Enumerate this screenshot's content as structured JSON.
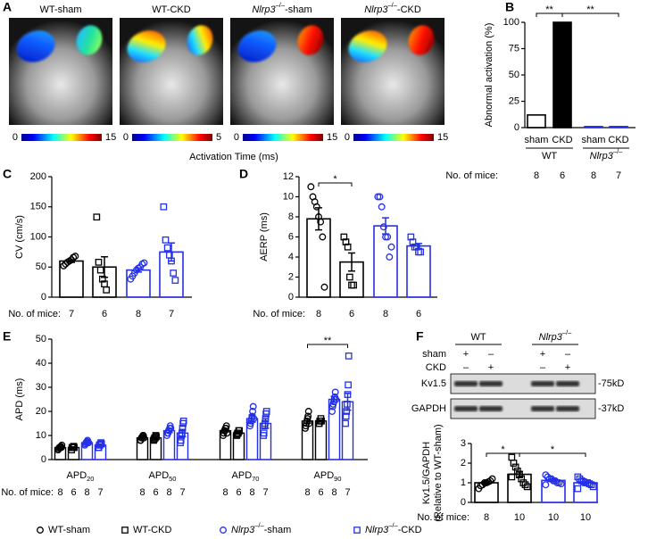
{
  "panel_labels": {
    "a": "A",
    "b": "B",
    "c": "C",
    "d": "D",
    "e": "E",
    "f": "F"
  },
  "mice_label": "No. of mice:",
  "panel_a": {
    "maps": [
      {
        "title": "WT-sham",
        "colorbar": [
          0,
          15
        ]
      },
      {
        "title": "WT-CKD",
        "colorbar": [
          0,
          5
        ]
      },
      {
        "title": {
          "gene": "Nlrp3",
          "sup": "–/–",
          "text": "-sham"
        },
        "colorbar": [
          0,
          15
        ]
      },
      {
        "title": {
          "gene": "Nlrp3",
          "sup": "–/–",
          "text": "-CKD"
        },
        "colorbar": [
          0,
          15
        ]
      }
    ],
    "axis_label": "Activation Time (ms)"
  },
  "legend": {
    "items": [
      {
        "label": "WT-sham",
        "color": "#000000",
        "marker": "circle"
      },
      {
        "label": "WT-CKD",
        "color": "#000000",
        "marker": "square"
      },
      {
        "label": {
          "gene": "Nlrp3",
          "sup": "–/–",
          "text": "-sham"
        },
        "color": "#2430e8",
        "marker": "circle"
      },
      {
        "label": {
          "gene": "Nlrp3",
          "sup": "–/–",
          "text": "-CKD"
        },
        "color": "#2430e8",
        "marker": "square"
      }
    ]
  },
  "chart_data": [
    {
      "type": "bar",
      "ylabel": "Abnormal activation (%)",
      "ylim": [
        0,
        100
      ],
      "yticks": [
        0,
        25,
        50,
        75,
        100
      ],
      "categories": [
        "sham",
        "CKD",
        "sham",
        "CKD"
      ],
      "values": [
        12,
        100,
        1,
        1
      ],
      "colors": [
        "#000000",
        "#000000",
        "#2430e8",
        "#2430e8"
      ],
      "filled": [
        false,
        true,
        false,
        false
      ],
      "groups": [
        {
          "label": "WT",
          "bars": [
            0,
            1
          ]
        },
        {
          "label": {
            "gene": "Nlrp3",
            "sup": "–/–"
          },
          "bars": [
            2,
            3
          ]
        }
      ],
      "significance": [
        {
          "label": "**",
          "between": [
            0,
            1
          ]
        },
        {
          "label": "**",
          "between": [
            1,
            3
          ]
        }
      ],
      "n": [
        8,
        6,
        8,
        7
      ]
    },
    {
      "type": "dot_bar",
      "ylabel": "CV (cm/s)",
      "ylim": [
        0,
        200
      ],
      "yticks": [
        0,
        50,
        100,
        150,
        200
      ],
      "groups": [
        {
          "points": [
            52,
            55,
            58,
            60,
            62,
            66,
            68
          ],
          "mean": 60,
          "sem": 2.3,
          "n": 7
        },
        {
          "points": [
            133,
            58,
            45,
            30,
            22,
            12
          ],
          "mean": 50,
          "sem": 17,
          "n": 6
        },
        {
          "points": [
            30,
            35,
            40,
            45,
            48,
            50,
            55,
            57
          ],
          "mean": 45,
          "sem": 3.3,
          "n": 8
        },
        {
          "points": [
            150,
            95,
            82,
            70,
            60,
            40,
            28
          ],
          "mean": 75,
          "sem": 15,
          "n": 7
        }
      ]
    },
    {
      "type": "dot_bar",
      "ylabel": "AERP (ms)",
      "ylim": [
        0,
        12
      ],
      "yticks": [
        0,
        2,
        4,
        6,
        8,
        10,
        12
      ],
      "groups": [
        {
          "points": [
            11,
            10,
            9.5,
            9,
            8,
            7.5,
            6,
            1
          ],
          "mean": 7.8,
          "sem": 1.1,
          "n": 8
        },
        {
          "points": [
            6,
            5.5,
            5,
            2,
            1.2,
            1.2
          ],
          "mean": 3.5,
          "sem": 0.9,
          "n": 6
        },
        {
          "points": [
            10,
            10,
            9,
            7,
            6,
            6,
            4,
            5
          ],
          "mean": 7.1,
          "sem": 0.8,
          "n": 8
        },
        {
          "points": [
            6,
            5.5,
            5,
            5,
            4.5,
            4.5
          ],
          "mean": 5.1,
          "sem": 0.25,
          "n": 6
        }
      ],
      "significance": [
        {
          "label": "*",
          "between": [
            0,
            1
          ]
        }
      ]
    },
    {
      "type": "grouped_dot_bar",
      "ylabel": "APD (ms)",
      "ylim": [
        0,
        50
      ],
      "yticks": [
        0,
        10,
        20,
        30,
        40,
        50
      ],
      "categories": [
        {
          "text": "APD",
          "sub": "20"
        },
        {
          "text": "APD",
          "sub": "50"
        },
        {
          "text": "APD",
          "sub": "70"
        },
        {
          "text": "APD",
          "sub": "90"
        }
      ],
      "series": [
        {
          "means": [
            5,
            9,
            12,
            16
          ],
          "sems": [
            0.3,
            0.5,
            0.5,
            0.9
          ],
          "n": 8,
          "points": [
            [
              4,
              4.5,
              5,
              5,
              5,
              5.5,
              5,
              6
            ],
            [
              8,
              8,
              9,
              9,
              9.5,
              10,
              10,
              9
            ],
            [
              10,
              11,
              12,
              12,
              13,
              13,
              14,
              11
            ],
            [
              13,
              14,
              15,
              16,
              17,
              18,
              20,
              15
            ]
          ]
        },
        {
          "means": [
            5,
            9,
            11,
            16
          ],
          "sems": [
            0.3,
            0.4,
            0.4,
            0.4
          ],
          "n": 6,
          "points": [
            [
              4,
              5,
              5,
              5,
              5.5,
              5
            ],
            [
              8,
              8.5,
              9,
              9,
              10,
              9.5
            ],
            [
              10,
              10.5,
              11,
              11,
              12,
              12
            ],
            [
              15,
              15,
              16,
              16,
              17,
              16
            ]
          ]
        },
        {
          "means": [
            7,
            12,
            17,
            25
          ],
          "sems": [
            0.4,
            0.8,
            1.5,
            1.2
          ],
          "n": 8,
          "points": [
            [
              6,
              6.5,
              7,
              7,
              7.5,
              8,
              7,
              7
            ],
            [
              10,
              11,
              11,
              12,
              12,
              13,
              14,
              13
            ],
            [
              14,
              15,
              16,
              17,
              18,
              20,
              22,
              17
            ],
            [
              20,
              22,
              23,
              24,
              25,
              26,
              28,
              25
            ]
          ]
        },
        {
          "means": [
            6,
            11,
            15,
            24
          ],
          "sems": [
            0.4,
            1.5,
            2,
            3.5
          ],
          "n": 7,
          "points": [
            [
              5,
              5,
              6,
              6,
              6.5,
              7,
              6.5
            ],
            [
              7,
              8,
              10,
              11,
              13,
              15,
              16
            ],
            [
              10,
              11,
              14,
              15,
              17,
              19,
              20
            ],
            [
              15,
              18,
              20,
              23,
              27,
              31,
              43
            ]
          ]
        }
      ],
      "significance": [
        {
          "label": "**",
          "category": 3,
          "between": [
            0,
            3
          ]
        }
      ]
    },
    {
      "type": "dot_bar",
      "ylabel": [
        "Kv1.5/GAPDH",
        "(Relative to WT-sham)"
      ],
      "ylim": [
        0,
        3
      ],
      "yticks": [
        0,
        1,
        2,
        3
      ],
      "groups": [
        {
          "points": [
            0.7,
            0.85,
            0.9,
            1,
            1,
            1.05,
            1.1,
            1.2
          ],
          "mean": 1.0,
          "sem": 0.06,
          "n": 8
        },
        {
          "points": [
            2.3,
            2,
            1.8,
            1.6,
            1.4,
            1.2,
            1,
            0.9,
            0.8,
            1.3
          ],
          "mean": 1.43,
          "sem": 0.15,
          "n": 10
        },
        {
          "points": [
            1.4,
            1.3,
            1.2,
            1.2,
            1.1,
            1.1,
            1,
            1,
            0.95,
            0.9
          ],
          "mean": 1.12,
          "sem": 0.05,
          "n": 10
        },
        {
          "points": [
            1.3,
            1.2,
            1.1,
            1.05,
            1,
            1,
            0.95,
            0.9,
            0.8,
            0.7
          ],
          "mean": 1.0,
          "sem": 0.06,
          "n": 10
        }
      ],
      "significance": [
        {
          "label": "*",
          "between": [
            0,
            1
          ]
        },
        {
          "label": "*",
          "between": [
            1,
            3
          ]
        }
      ]
    }
  ],
  "blot": {
    "groups": [
      {
        "label": "WT"
      },
      {
        "label": {
          "gene": "Nlrp3",
          "sup": "–/–"
        }
      }
    ],
    "rows": [
      {
        "label": "sham",
        "marks": [
          "+",
          "–",
          "+",
          "–"
        ]
      },
      {
        "label": "CKD",
        "marks": [
          "–",
          "+",
          "–",
          "+"
        ]
      }
    ],
    "bands": [
      {
        "label": "Kv1.5",
        "size": "-75kD"
      },
      {
        "label": "GAPDH",
        "size": "-37kD"
      }
    ]
  }
}
